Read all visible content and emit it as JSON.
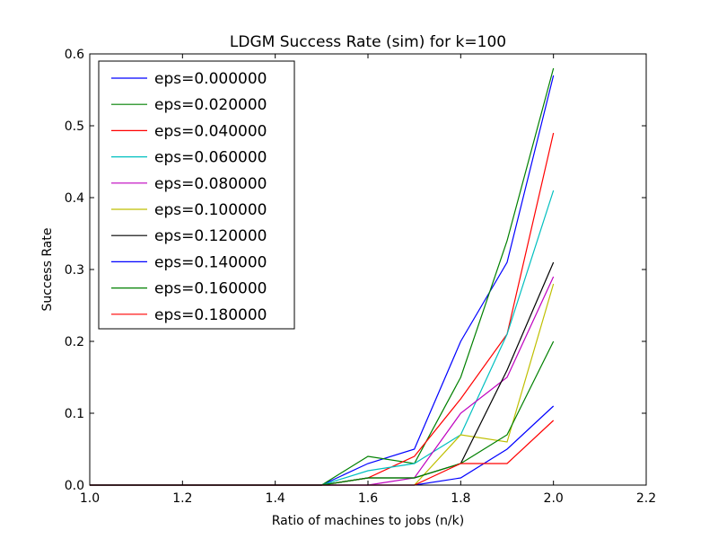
{
  "chart_data": {
    "type": "line",
    "title": "LDGM Success Rate (sim) for k=100",
    "xlabel": "Ratio of machines to jobs (n/k)",
    "ylabel": "Success Rate",
    "xlim": [
      1.0,
      2.2
    ],
    "ylim": [
      0.0,
      0.6
    ],
    "x_ticks": [
      "1.0",
      "1.2",
      "1.4",
      "1.6",
      "1.8",
      "2.0",
      "2.2"
    ],
    "y_ticks": [
      "0.0",
      "0.1",
      "0.2",
      "0.3",
      "0.4",
      "0.5",
      "0.6"
    ],
    "grid": false,
    "legend_position": "top-left",
    "x": [
      1.0,
      1.1,
      1.2,
      1.3,
      1.4,
      1.5,
      1.6,
      1.7,
      1.8,
      1.9,
      2.0
    ],
    "series": [
      {
        "name": "eps=0.000000",
        "color": "#0000ff",
        "values": [
          0,
          0,
          0,
          0,
          0,
          0,
          0.03,
          0.05,
          0.2,
          0.31,
          0.57
        ]
      },
      {
        "name": "eps=0.020000",
        "color": "#008000",
        "values": [
          0,
          0,
          0,
          0,
          0,
          0,
          0.04,
          0.03,
          0.15,
          0.34,
          0.58
        ]
      },
      {
        "name": "eps=0.040000",
        "color": "#ff0000",
        "values": [
          0,
          0,
          0,
          0,
          0,
          0,
          0.01,
          0.04,
          0.12,
          0.21,
          0.49
        ]
      },
      {
        "name": "eps=0.060000",
        "color": "#00bfbf",
        "values": [
          0,
          0,
          0,
          0,
          0,
          0,
          0.02,
          0.03,
          0.07,
          0.21,
          0.41
        ]
      },
      {
        "name": "eps=0.080000",
        "color": "#bf00bf",
        "values": [
          0,
          0,
          0,
          0,
          0,
          0,
          0,
          0.01,
          0.1,
          0.15,
          0.29
        ]
      },
      {
        "name": "eps=0.100000",
        "color": "#bfbf00",
        "values": [
          0,
          0,
          0,
          0,
          0,
          0,
          0,
          0,
          0.07,
          0.06,
          0.28
        ]
      },
      {
        "name": "eps=0.120000",
        "color": "#000000",
        "values": [
          0,
          0,
          0,
          0,
          0,
          0,
          0.01,
          0.01,
          0.03,
          0.16,
          0.31
        ]
      },
      {
        "name": "eps=0.140000",
        "color": "#0000ff",
        "values": [
          0,
          0,
          0,
          0,
          0,
          0,
          0,
          0,
          0.01,
          0.05,
          0.11
        ]
      },
      {
        "name": "eps=0.160000",
        "color": "#008000",
        "values": [
          0,
          0,
          0,
          0,
          0,
          0,
          0.01,
          0.01,
          0.03,
          0.07,
          0.2
        ]
      },
      {
        "name": "eps=0.180000",
        "color": "#ff0000",
        "values": [
          0,
          0,
          0,
          0,
          0,
          0,
          0,
          0,
          0.03,
          0.03,
          0.09
        ]
      }
    ]
  }
}
